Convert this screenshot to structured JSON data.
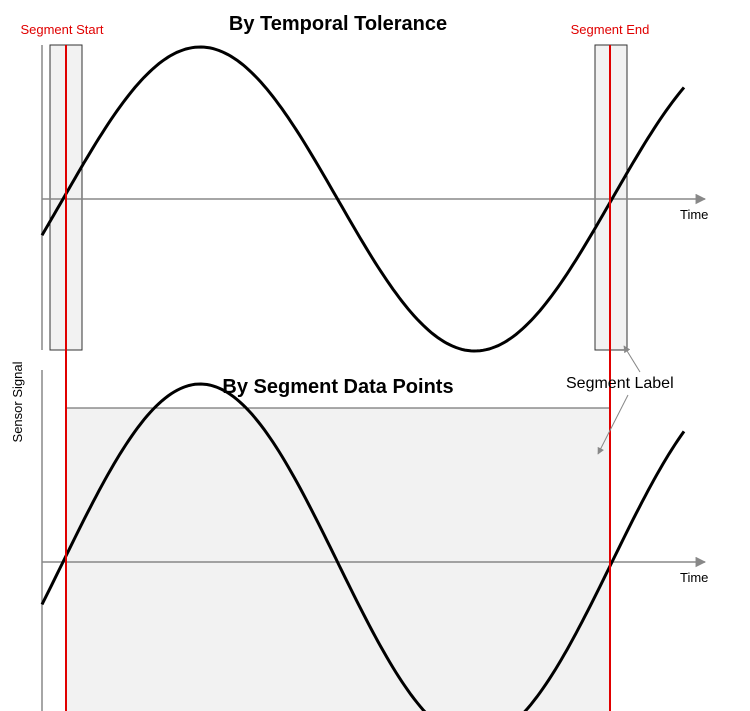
{
  "panels": [
    {
      "title": "By Temporal Tolerance",
      "x_axis_label": "Time"
    },
    {
      "title": "By Segment Data Points",
      "x_axis_label": "Time"
    }
  ],
  "y_axis_label": "Sensor Signal",
  "markers": {
    "start": "Segment Start",
    "end": "Segment End"
  },
  "annotation": "Segment Label"
}
